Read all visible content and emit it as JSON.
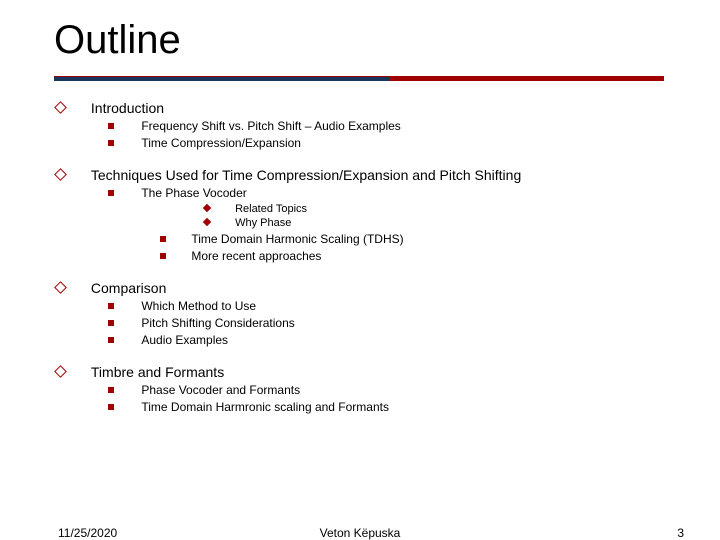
{
  "title": "Outline",
  "colors": {
    "accent": "#a00000",
    "rule_dark": "#17365d",
    "text": "#000000",
    "background": "#ffffff"
  },
  "sections": {
    "intro": {
      "label": "Introduction",
      "items": [
        "Frequency Shift vs. Pitch Shift – Audio Examples",
        "Time Compression/Expansion"
      ]
    },
    "techniques": {
      "label": "Techniques Used for Time Compression/Expansion and Pitch Shifting",
      "phase_vocoder": {
        "label": "The Phase Vocoder",
        "sub": [
          "Related Topics",
          "Why Phase"
        ]
      },
      "others": [
        "Time Domain Harmonic Scaling (TDHS)",
        "More recent approaches"
      ]
    },
    "comparison": {
      "label": "Comparison",
      "items": [
        "Which Method to Use",
        "Pitch Shifting Considerations",
        "Audio Examples"
      ]
    },
    "timbre": {
      "label": "Timbre and Formants",
      "items": [
        "Phase Vocoder and Formants",
        "Time Domain Harmronic scaling and Formants"
      ]
    }
  },
  "footer": {
    "date": "11/25/2020",
    "author": "Veton Këpuska",
    "page": "3"
  }
}
